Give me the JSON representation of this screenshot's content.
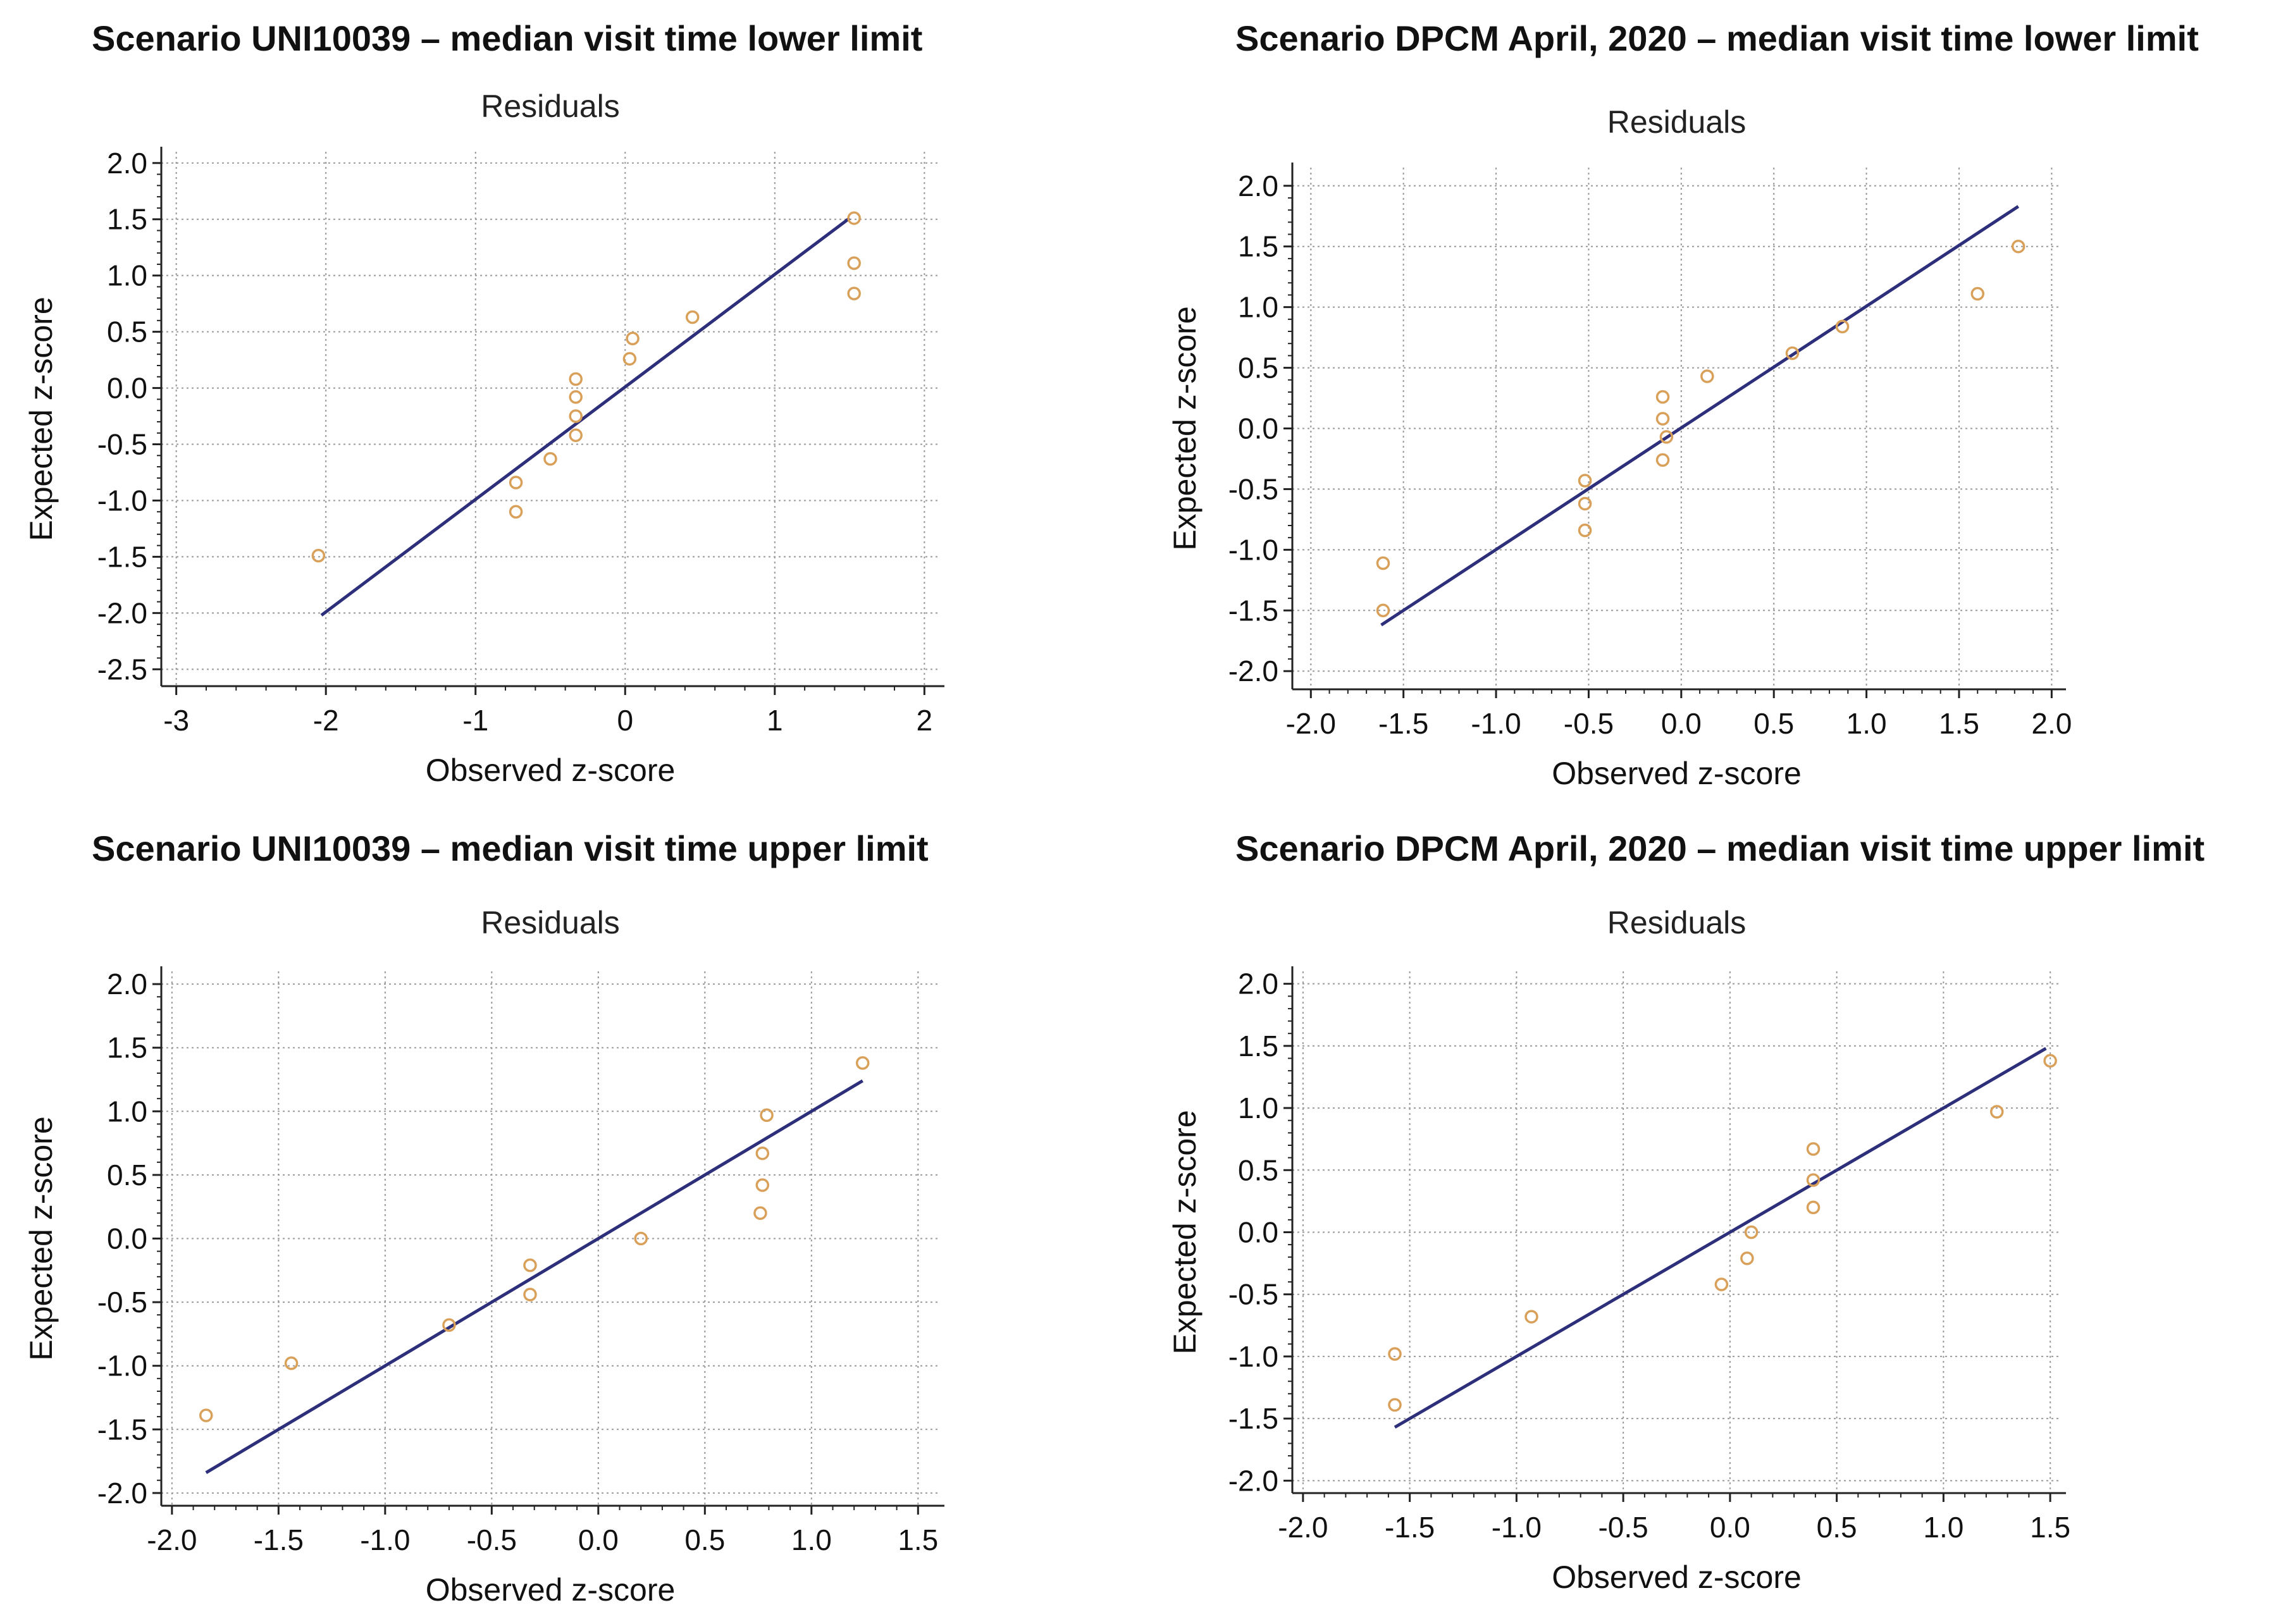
{
  "colors": {
    "line": "#2e2f7a",
    "marker": "#d9a05a",
    "grid": "#9a9a9a",
    "axis": "#222222"
  },
  "chart_data": [
    {
      "type": "scatter",
      "title": "Scenario UNI10039 – median visit time lower limit",
      "subtitle": "Residuals",
      "xlabel": "Observed z-score",
      "ylabel": "Expected z-score",
      "xlim": [
        -3.1,
        2.1
      ],
      "ylim": [
        -2.65,
        2.1
      ],
      "xticks": [
        -3,
        -2,
        -1,
        0,
        1,
        2
      ],
      "yticks": [
        -2.5,
        -2.0,
        -1.5,
        -1.0,
        -0.5,
        0.0,
        0.5,
        1.0,
        1.5,
        2.0
      ],
      "tick_format": "int",
      "grid": true,
      "points": {
        "x": [
          -2.05,
          -0.73,
          -0.73,
          -0.5,
          -0.33,
          -0.33,
          -0.33,
          -0.33,
          0.03,
          0.05,
          0.45,
          1.53,
          1.53,
          1.53
        ],
        "y": [
          -1.49,
          -1.1,
          -0.84,
          -0.63,
          -0.42,
          -0.25,
          -0.08,
          0.08,
          0.26,
          0.44,
          0.63,
          0.84,
          1.11,
          1.51
        ]
      },
      "fit_line": {
        "x": [
          -2.03,
          1.5
        ],
        "y": [
          -2.02,
          1.51
        ]
      }
    },
    {
      "type": "scatter",
      "title": "Scenario DPCM April, 2020 – median visit time lower limit",
      "subtitle": "Residuals",
      "xlabel": "Observed z-score",
      "ylabel": "Expected z-score",
      "xlim": [
        -2.1,
        2.05
      ],
      "ylim": [
        -2.15,
        2.15
      ],
      "xticks": [
        -2.0,
        -1.5,
        -1.0,
        -0.5,
        0.0,
        0.5,
        1.0,
        1.5,
        2.0
      ],
      "yticks": [
        -2.0,
        -1.5,
        -1.0,
        -0.5,
        0.0,
        0.5,
        1.0,
        1.5,
        2.0
      ],
      "tick_format": "fixed1",
      "grid": true,
      "points": {
        "x": [
          -1.61,
          -1.61,
          -0.52,
          -0.52,
          -0.52,
          -0.1,
          -0.08,
          -0.1,
          -0.1,
          0.14,
          0.6,
          0.87,
          1.6,
          1.82
        ],
        "y": [
          -1.5,
          -1.11,
          -0.84,
          -0.62,
          -0.43,
          -0.26,
          -0.07,
          0.08,
          0.26,
          0.43,
          0.62,
          0.84,
          1.11,
          1.5
        ]
      },
      "fit_line": {
        "x": [
          -1.62,
          1.82
        ],
        "y": [
          -1.62,
          1.83
        ]
      }
    },
    {
      "type": "scatter",
      "title": "Scenario UNI10039 – median visit time upper limit",
      "subtitle": "Residuals",
      "xlabel": "Observed z-score",
      "ylabel": "Expected z-score",
      "xlim": [
        -2.05,
        1.6
      ],
      "ylim": [
        -2.1,
        2.1
      ],
      "xticks": [
        -2.0,
        -1.5,
        -1.0,
        -0.5,
        0.0,
        0.5,
        1.0,
        1.5
      ],
      "yticks": [
        -2.0,
        -1.5,
        -1.0,
        -0.5,
        0.0,
        0.5,
        1.0,
        1.5,
        2.0
      ],
      "tick_format": "fixed1",
      "grid": true,
      "points": {
        "x": [
          -1.84,
          -1.44,
          -0.7,
          -0.32,
          -0.32,
          0.2,
          0.76,
          0.77,
          0.77,
          0.79,
          1.24
        ],
        "y": [
          -1.39,
          -0.98,
          -0.68,
          -0.44,
          -0.21,
          0.0,
          0.2,
          0.42,
          0.67,
          0.97,
          1.38
        ]
      },
      "fit_line": {
        "x": [
          -1.84,
          1.24
        ],
        "y": [
          -1.84,
          1.24
        ]
      }
    },
    {
      "type": "scatter",
      "title": "Scenario DPCM April, 2020 – median visit time upper limit",
      "subtitle": "Residuals",
      "xlabel": "Observed z-score",
      "ylabel": "Expected z-score",
      "xlim": [
        -2.05,
        1.55
      ],
      "ylim": [
        -2.1,
        2.1
      ],
      "xticks": [
        -2.0,
        -1.5,
        -1.0,
        -0.5,
        0.0,
        0.5,
        1.0,
        1.5
      ],
      "yticks": [
        -2.0,
        -1.5,
        -1.0,
        -0.5,
        0.0,
        0.5,
        1.0,
        1.5,
        2.0
      ],
      "tick_format": "fixed1",
      "grid": true,
      "points": {
        "x": [
          -1.57,
          -1.57,
          -0.93,
          -0.04,
          0.08,
          0.1,
          0.39,
          0.39,
          0.39,
          1.25,
          1.5
        ],
        "y": [
          -1.39,
          -0.98,
          -0.68,
          -0.42,
          -0.21,
          0.0,
          0.2,
          0.42,
          0.67,
          0.97,
          1.38
        ]
      },
      "fit_line": {
        "x": [
          -1.57,
          1.48
        ],
        "y": [
          -1.57,
          1.48
        ]
      }
    }
  ]
}
